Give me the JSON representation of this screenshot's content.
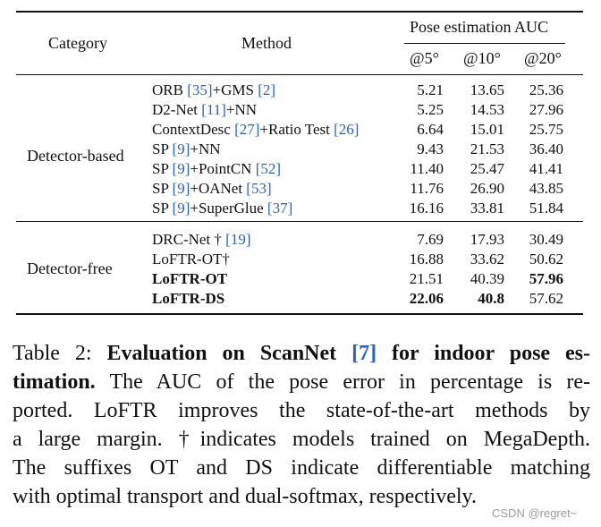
{
  "table": {
    "header": {
      "category": "Category",
      "method": "Method",
      "group": "Pose estimation AUC",
      "cols": [
        "@5°",
        "@10°",
        "@20°"
      ]
    },
    "sections": [
      {
        "category": "Detector-based",
        "rows": [
          {
            "m": [
              {
                "t": "ORB "
              },
              {
                "t": "[35]",
                "r": 1
              },
              {
                "t": "+GMS "
              },
              {
                "t": "[2]",
                "r": 1
              }
            ],
            "v": [
              "5.21",
              "13.65",
              "25.36"
            ]
          },
          {
            "m": [
              {
                "t": "D2-Net "
              },
              {
                "t": "[11]",
                "r": 1
              },
              {
                "t": "+NN"
              }
            ],
            "v": [
              "5.25",
              "14.53",
              "27.96"
            ]
          },
          {
            "m": [
              {
                "t": "ContextDesc "
              },
              {
                "t": "[27]",
                "r": 1
              },
              {
                "t": "+Ratio Test "
              },
              {
                "t": "[26]",
                "r": 1
              }
            ],
            "v": [
              "6.64",
              "15.01",
              "25.75"
            ]
          },
          {
            "m": [
              {
                "t": "SP "
              },
              {
                "t": "[9]",
                "r": 1
              },
              {
                "t": "+NN"
              }
            ],
            "v": [
              "9.43",
              "21.53",
              "36.40"
            ]
          },
          {
            "m": [
              {
                "t": "SP "
              },
              {
                "t": "[9]",
                "r": 1
              },
              {
                "t": "+PointCN "
              },
              {
                "t": "[52]",
                "r": 1
              }
            ],
            "v": [
              "11.40",
              "25.47",
              "41.41"
            ]
          },
          {
            "m": [
              {
                "t": "SP "
              },
              {
                "t": "[9]",
                "r": 1
              },
              {
                "t": "+OANet "
              },
              {
                "t": "[53]",
                "r": 1
              }
            ],
            "v": [
              "11.76",
              "26.90",
              "43.85"
            ]
          },
          {
            "m": [
              {
                "t": "SP "
              },
              {
                "t": "[9]",
                "r": 1
              },
              {
                "t": "+SuperGlue "
              },
              {
                "t": "[37]",
                "r": 1
              }
            ],
            "v": [
              "16.16",
              "33.81",
              "51.84"
            ]
          }
        ]
      },
      {
        "category": "Detector-free",
        "rows": [
          {
            "m": [
              {
                "t": "DRC-Net † "
              },
              {
                "t": "[19]",
                "r": 1
              }
            ],
            "v": [
              "7.69",
              "17.93",
              "30.49"
            ]
          },
          {
            "m": [
              {
                "t": "LoFTR-OT†"
              }
            ],
            "v": [
              "16.88",
              "33.62",
              "50.62"
            ]
          },
          {
            "m": [
              {
                "t": "LoFTR-OT",
                "b": 1
              }
            ],
            "v": [
              "21.51",
              "40.39",
              "57.96"
            ],
            "bold": [
              false,
              false,
              true
            ]
          },
          {
            "m": [
              {
                "t": "LoFTR-DS",
                "b": 1
              }
            ],
            "v": [
              "22.06",
              "40.8",
              "57.62"
            ],
            "bold": [
              true,
              true,
              false
            ]
          }
        ]
      }
    ]
  },
  "caption": {
    "label": "Table 2:",
    "title_a": "Evaluation on ScanNet",
    "title_ref": "[7]",
    "title_b": "for indoor pose es-",
    "title_c": "timation.",
    "line1_rest": "The AUC of the pose error in percentage is re-",
    "line2": "ported.  LoFTR improves the state-of-the-art methods by",
    "line3": "a large margin.  †indicates models trained on MegaDepth.",
    "line4": "The suffixes OT and DS indicate differentiable matching",
    "line5": "with optimal transport and dual-softmax, respectively."
  },
  "watermark": "CSDN @regret~",
  "colors": {
    "ref": "#2a62c0",
    "text": "#111111"
  }
}
